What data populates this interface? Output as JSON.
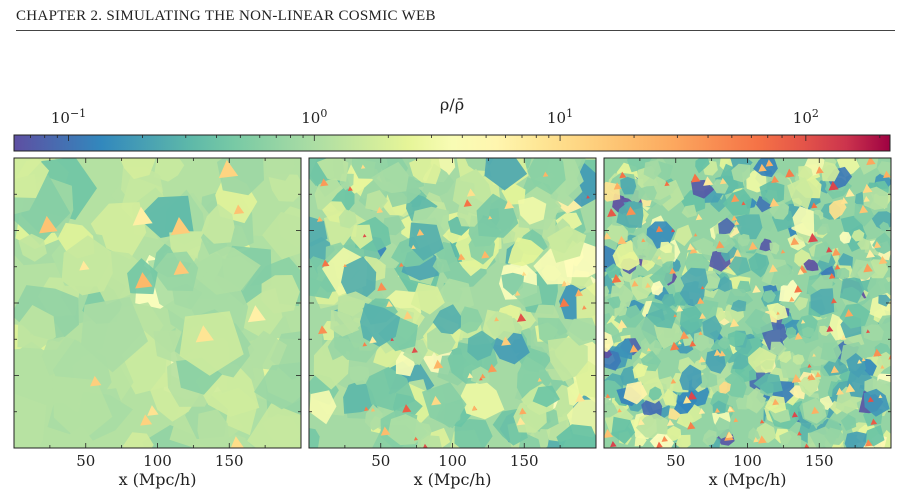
{
  "header": {
    "running_title": "CHAPTER 2.  SIMULATING THE NON-LINEAR COSMIC WEB"
  },
  "colorbar": {
    "label": "ρ/ρ̄",
    "scale": "log",
    "colormap": "Spectral_r",
    "range": [
      0.06,
      220
    ],
    "ticks": [
      {
        "value": 0.1,
        "base": "10",
        "exp": "−1"
      },
      {
        "value": 1,
        "base": "10",
        "exp": "0"
      },
      {
        "value": 10,
        "base": "10",
        "exp": "1"
      },
      {
        "value": 100,
        "base": "10",
        "exp": "2"
      }
    ]
  },
  "panels": [
    {
      "xlabel": "x (Mpc/h)",
      "xticks": [
        50,
        100,
        150
      ],
      "xlim": [
        0,
        200
      ],
      "style": "smooth",
      "density_mean_log10": 0.05,
      "density_spread": 0.35
    },
    {
      "xlabel": "x (Mpc/h)",
      "xticks": [
        50,
        100,
        150
      ],
      "xlim": [
        0,
        200
      ],
      "style": "intermediate",
      "density_mean_log10": -0.05,
      "density_spread": 0.55
    },
    {
      "xlabel": "x (Mpc/h)",
      "xticks": [
        50,
        100,
        150
      ],
      "xlim": [
        0,
        200
      ],
      "style": "clustered",
      "density_mean_log10": -0.15,
      "density_spread": 0.8
    }
  ],
  "chart_data": {
    "type": "heatmap",
    "title": "",
    "colorbar_label": "ρ/ρ̄",
    "x_unit_label": "x (Mpc/h)",
    "xlim": [
      0,
      200
    ],
    "xticks": [
      50,
      100,
      150
    ],
    "colorbar_ticks": [
      0.1,
      1,
      10,
      100
    ],
    "n_panels": 3
  }
}
